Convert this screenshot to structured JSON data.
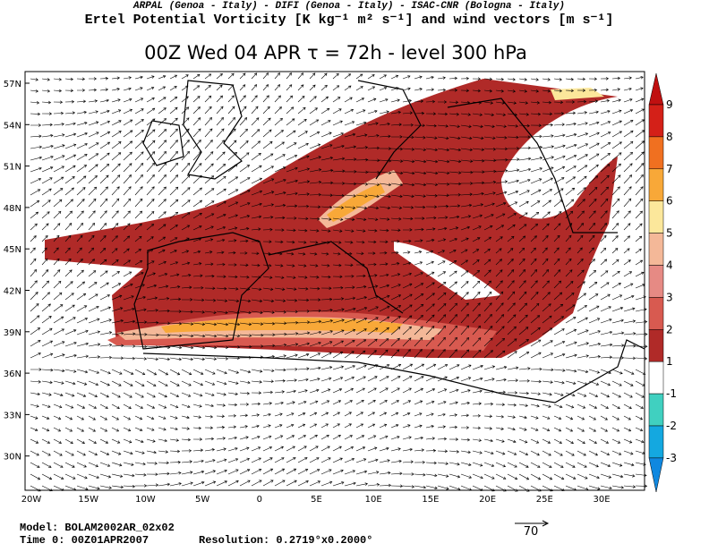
{
  "header": {
    "credits": "ARPAL (Genoa - Italy)  -  DIFI (Genoa - Italy)  -  ISAC-CNR (Bologna - Italy)",
    "title": "Ertel Potential Vorticity [K kg⁻¹ m² s⁻¹] and wind vectors [m s⁻¹]",
    "subtitle": "00Z Wed 04 APR  τ = 72h  -  level 300 hPa"
  },
  "map": {
    "lat_labels": [
      "57N",
      "54N",
      "51N",
      "48N",
      "45N",
      "42N",
      "39N",
      "36N",
      "33N",
      "30N"
    ],
    "lon_labels": [
      "20W",
      "15W",
      "10W",
      "5W",
      "0",
      "5E",
      "10E",
      "15E",
      "20E",
      "25E",
      "30E"
    ]
  },
  "colorbar": {
    "labels": [
      9,
      8,
      7,
      6,
      5,
      4,
      3,
      2,
      1,
      -1,
      -2,
      -3
    ],
    "colors": [
      "#c01010",
      "#d42018",
      "#f07020",
      "#f8a838",
      "#fce79b",
      "#f4b898",
      "#e68a84",
      "#d85a50",
      "#b02a28",
      "#ffffff",
      "#40d0c0",
      "#14a8e0",
      "#1088e0"
    ]
  },
  "wind_scale": {
    "label": "70"
  },
  "footer": {
    "model": "Model: BOLAM2002AR_02x02",
    "time": "Time 0: 00Z01APR2007",
    "resolution": "Resolution: 0.2719°x0.2000°"
  }
}
